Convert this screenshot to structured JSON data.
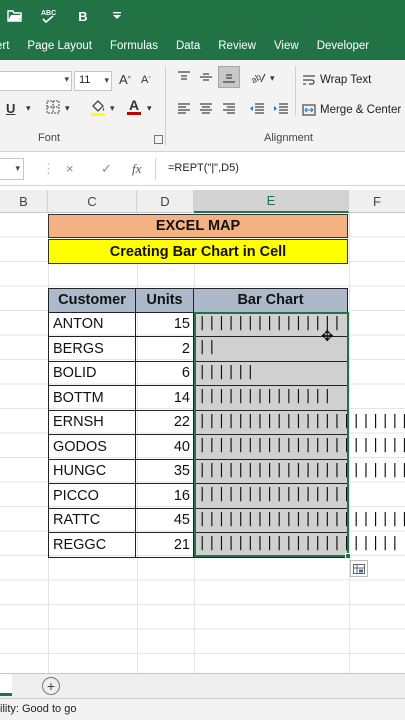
{
  "quick_access": {
    "icons": [
      "open-folder-icon",
      "spelling-icon",
      "bold-icon",
      "customize-icon"
    ],
    "bold_label": "B"
  },
  "ribbon_tabs": [
    "ert",
    "Page Layout",
    "Formulas",
    "Data",
    "Review",
    "View",
    "Developer"
  ],
  "ribbon": {
    "font_size": "11",
    "font_group_label": "Font",
    "alignment_group_label": "Alignment",
    "wrap_text_label": "Wrap Text",
    "merge_center_label": "Merge & Center",
    "underline_label": "U",
    "font_color_label": "A"
  },
  "formula_bar": {
    "cancel_icon": "×",
    "enter_icon": "✓",
    "fx_label": "fx",
    "formula": "=REPT(\"|\",D5)"
  },
  "columns": [
    "B",
    "C",
    "D",
    "E",
    "F"
  ],
  "selected_column": "E",
  "titles": {
    "line1": "EXCEL MAP",
    "line2": "Creating Bar Chart in Cell"
  },
  "table": {
    "headers": [
      "Customer",
      "Units",
      "Bar Chart"
    ],
    "rows": [
      {
        "customer": "ANTON",
        "units": 15
      },
      {
        "customer": "BERGS",
        "units": 2
      },
      {
        "customer": "BOLID",
        "units": 6
      },
      {
        "customer": "BOTTM",
        "units": 14
      },
      {
        "customer": "ERNSH",
        "units": 22
      },
      {
        "customer": "GODOS",
        "units": 40
      },
      {
        "customer": "HUNGC",
        "units": 35
      },
      {
        "customer": "PICCO",
        "units": 16
      },
      {
        "customer": "RATTC",
        "units": 45
      },
      {
        "customer": "REGGC",
        "units": 21
      }
    ]
  },
  "sheet_bar": {
    "add_sheet": "+"
  },
  "status_bar": {
    "text": "ility: Good to go"
  },
  "colors": {
    "excel_green": "#217346",
    "title_orange": "#f4b183",
    "title_yellow": "#ffff00",
    "header_blue": "#acb9ca",
    "bar_cell_gray": "#d0d0d0"
  }
}
